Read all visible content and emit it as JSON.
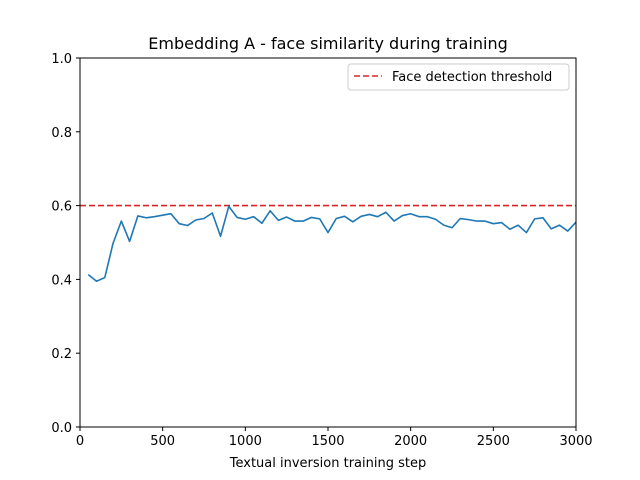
{
  "chart_data": {
    "type": "line",
    "title": "Embedding A - face similarity during training",
    "xlabel": "Textual inversion training step",
    "ylabel": "",
    "xlim": [
      0,
      3000
    ],
    "ylim": [
      0.0,
      1.0
    ],
    "x_ticks": [
      "0",
      "500",
      "1000",
      "1500",
      "2000",
      "2500",
      "3000"
    ],
    "y_ticks": [
      "0.0",
      "0.2",
      "0.4",
      "0.6",
      "0.8",
      "1.0"
    ],
    "grid": false,
    "legend_position": "top-right",
    "series": [
      {
        "color": "#1f77b4",
        "style": "solid",
        "x": [
          50,
          100,
          150,
          200,
          250,
          300,
          350,
          400,
          450,
          500,
          550,
          600,
          650,
          700,
          750,
          800,
          850,
          900,
          950,
          1000,
          1050,
          1100,
          1150,
          1200,
          1250,
          1300,
          1350,
          1400,
          1450,
          1500,
          1550,
          1600,
          1650,
          1700,
          1750,
          1800,
          1850,
          1900,
          1950,
          2000,
          2050,
          2100,
          2150,
          2200,
          2250,
          2300,
          2350,
          2400,
          2450,
          2500,
          2550,
          2600,
          2650,
          2700,
          2750,
          2800,
          2850,
          2900,
          2950,
          3000
        ],
        "y": [
          0.413,
          0.395,
          0.405,
          0.498,
          0.558,
          0.503,
          0.572,
          0.567,
          0.57,
          0.574,
          0.578,
          0.551,
          0.546,
          0.561,
          0.565,
          0.58,
          0.517,
          0.598,
          0.568,
          0.563,
          0.57,
          0.552,
          0.586,
          0.56,
          0.569,
          0.558,
          0.558,
          0.568,
          0.564,
          0.527,
          0.565,
          0.571,
          0.556,
          0.571,
          0.576,
          0.57,
          0.582,
          0.558,
          0.573,
          0.578,
          0.57,
          0.57,
          0.563,
          0.547,
          0.54,
          0.565,
          0.562,
          0.558,
          0.558,
          0.551,
          0.554,
          0.536,
          0.547,
          0.527,
          0.564,
          0.567,
          0.537,
          0.547,
          0.531,
          0.555
        ]
      }
    ],
    "reference_lines": [
      {
        "name": "Face detection threshold",
        "y": 0.6,
        "color": "#d62728",
        "style": "dashed"
      }
    ]
  }
}
